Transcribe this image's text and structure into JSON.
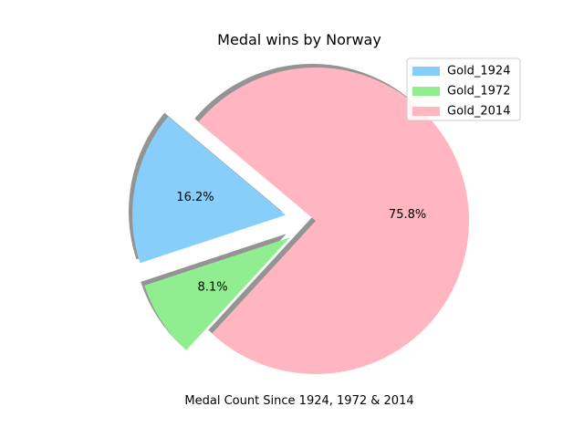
{
  "chart_data": {
    "type": "pie",
    "title": "Medal wins by Norway",
    "xlabel": "Medal Count Since 1924, 1972 & 2014",
    "legend_position": "top-right",
    "shadow": true,
    "start_angle_deg": 140,
    "slices": [
      {
        "label": "Gold_1924",
        "percent": 16.2,
        "pct_label": "16.2%",
        "color": "#87CEFA",
        "explode": 0.2
      },
      {
        "label": "Gold_1972",
        "percent": 8.1,
        "pct_label": "8.1%",
        "color": "#90EE90",
        "explode": 0.2
      },
      {
        "label": "Gold_2014",
        "percent": 75.8,
        "pct_label": "75.8%",
        "color": "#FFB6C1",
        "explode": 0
      }
    ]
  }
}
